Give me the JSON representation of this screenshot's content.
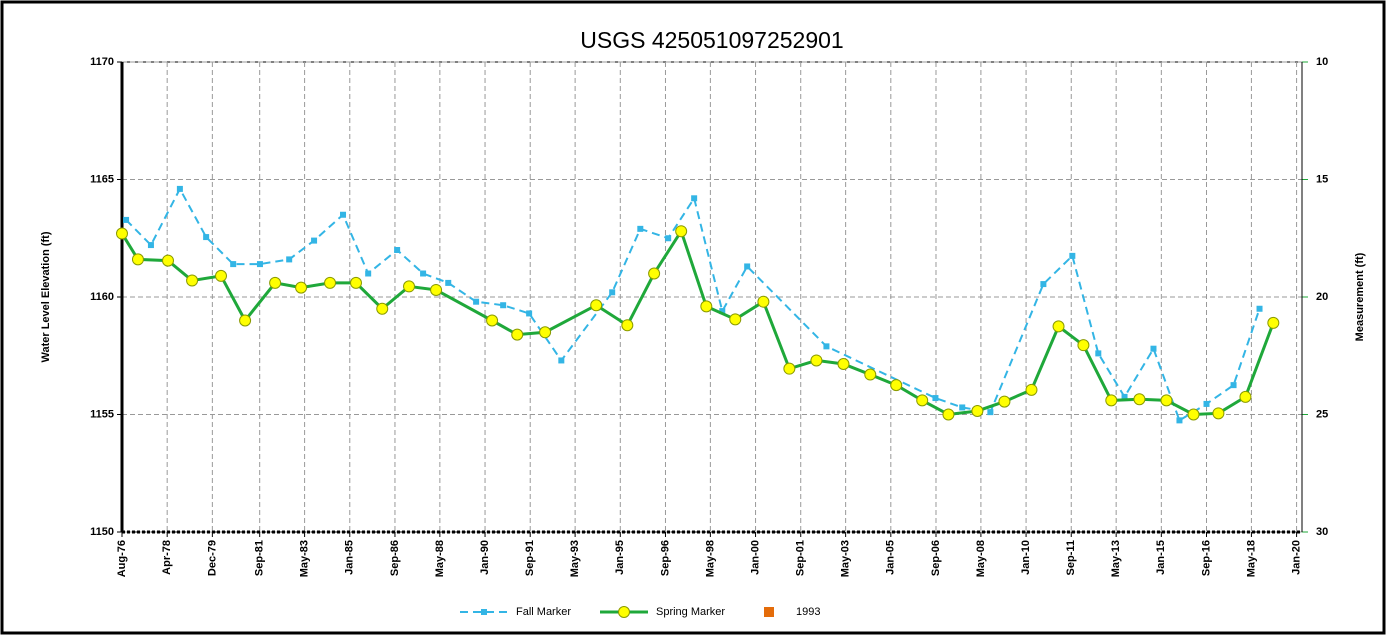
{
  "chart_data": {
    "type": "line",
    "title": "USGS 425051097252901",
    "ylabel": "Water Level Elevation (ft)",
    "y2label": "Measurement (ft)",
    "ylim": [
      1150,
      1170
    ],
    "yticks": [
      1150,
      1155,
      1160,
      1165,
      1170
    ],
    "y2lim": [
      30,
      10
    ],
    "y2ticks": [
      10,
      15,
      20,
      25,
      30
    ],
    "y2color": "#1fa83a",
    "xlim": [
      1976.58,
      2020.2
    ],
    "xticks": [
      {
        "value": 1976.58,
        "label": "Aug-76"
      },
      {
        "value": 1978.25,
        "label": "Apr-78"
      },
      {
        "value": 1979.92,
        "label": "Dec-79"
      },
      {
        "value": 1981.67,
        "label": "Sep-81"
      },
      {
        "value": 1983.33,
        "label": "May-83"
      },
      {
        "value": 1985.0,
        "label": "Jan-85"
      },
      {
        "value": 1986.67,
        "label": "Sep-86"
      },
      {
        "value": 1988.33,
        "label": "May-88"
      },
      {
        "value": 1990.0,
        "label": "Jan-90"
      },
      {
        "value": 1991.67,
        "label": "Sep-91"
      },
      {
        "value": 1993.33,
        "label": "May-93"
      },
      {
        "value": 1995.0,
        "label": "Jan-95"
      },
      {
        "value": 1996.67,
        "label": "Sep-96"
      },
      {
        "value": 1998.33,
        "label": "May-98"
      },
      {
        "value": 2000.0,
        "label": "Jan-00"
      },
      {
        "value": 2001.67,
        "label": "Sep-01"
      },
      {
        "value": 2003.33,
        "label": "May-03"
      },
      {
        "value": 2005.0,
        "label": "Jan-05"
      },
      {
        "value": 2006.67,
        "label": "Sep-06"
      },
      {
        "value": 2008.33,
        "label": "May-08"
      },
      {
        "value": 2010.0,
        "label": "Jan-10"
      },
      {
        "value": 2011.67,
        "label": "Sep-11"
      },
      {
        "value": 2013.33,
        "label": "May-13"
      },
      {
        "value": 2015.0,
        "label": "Jan-15"
      },
      {
        "value": 2016.67,
        "label": "Sep-16"
      },
      {
        "value": 2018.33,
        "label": "May-18"
      },
      {
        "value": 2020.0,
        "label": "Jan-20"
      }
    ],
    "grid": true,
    "legend": "bottom",
    "series": [
      {
        "name": "Fall Marker",
        "color": "#33b5e5",
        "dashed": true,
        "marker": "square",
        "x": [
          1976.73,
          1977.65,
          1978.72,
          1979.69,
          1980.69,
          1981.68,
          1982.76,
          1983.68,
          1984.75,
          1985.68,
          1986.75,
          1987.71,
          1988.64,
          1989.67,
          1990.67,
          1991.63,
          1992.82,
          1994.7,
          1995.74,
          1996.77,
          1997.73,
          1998.77,
          1999.69,
          2002.62,
          2006.65,
          2007.64,
          2008.68,
          2010.64,
          2011.71,
          2012.67,
          2013.64,
          2014.71,
          2015.67,
          2016.67,
          2017.67,
          2018.63
        ],
        "values": [
          1163.28,
          1162.21,
          1164.6,
          1162.55,
          1161.4,
          1161.4,
          1161.6,
          1162.4,
          1163.5,
          1161.0,
          1162.0,
          1161.0,
          1160.6,
          1159.8,
          1159.65,
          1159.3,
          1157.3,
          1160.2,
          1162.9,
          1162.5,
          1164.2,
          1159.4,
          1161.3,
          1157.9,
          1155.7,
          1155.3,
          1155.1,
          1160.55,
          1161.75,
          1157.6,
          1155.75,
          1157.8,
          1154.75,
          1155.45,
          1156.25,
          1159.5
        ]
      },
      {
        "name": "Spring Marker",
        "color": "#1fa83a",
        "dashed": false,
        "marker": "circle",
        "marker_fill": "#ffff00",
        "x": [
          1976.58,
          1977.17,
          1978.28,
          1979.17,
          1980.24,
          1981.13,
          1982.24,
          1983.2,
          1984.27,
          1985.23,
          1986.2,
          1987.19,
          1988.19,
          1990.26,
          1991.19,
          1992.22,
          1994.11,
          1995.26,
          1996.25,
          1997.25,
          1998.18,
          1999.25,
          2000.29,
          2001.25,
          2002.25,
          2003.25,
          2004.24,
          2005.2,
          2006.16,
          2007.13,
          2008.2,
          2009.2,
          2010.2,
          2011.2,
          2012.12,
          2013.15,
          2014.19,
          2015.19,
          2016.19,
          2017.11,
          2018.11,
          2019.14
        ],
        "values": [
          1162.7,
          1161.6,
          1161.55,
          1160.7,
          1160.9,
          1159.0,
          1160.6,
          1160.4,
          1160.6,
          1160.6,
          1159.5,
          1160.45,
          1160.3,
          1159.0,
          1158.4,
          1158.5,
          1159.65,
          1158.8,
          1161.0,
          1162.8,
          1159.6,
          1159.05,
          1159.8,
          1156.95,
          1157.3,
          1157.15,
          1156.7,
          1156.25,
          1155.6,
          1155.0,
          1155.15,
          1155.55,
          1156.05,
          1158.75,
          1157.95,
          1155.6,
          1155.65,
          1155.6,
          1155.0,
          1155.05,
          1155.75,
          1158.9
        ]
      },
      {
        "name": "1993",
        "color": "#e46c0a",
        "marker": "legend-square",
        "x": [],
        "values": []
      }
    ]
  }
}
